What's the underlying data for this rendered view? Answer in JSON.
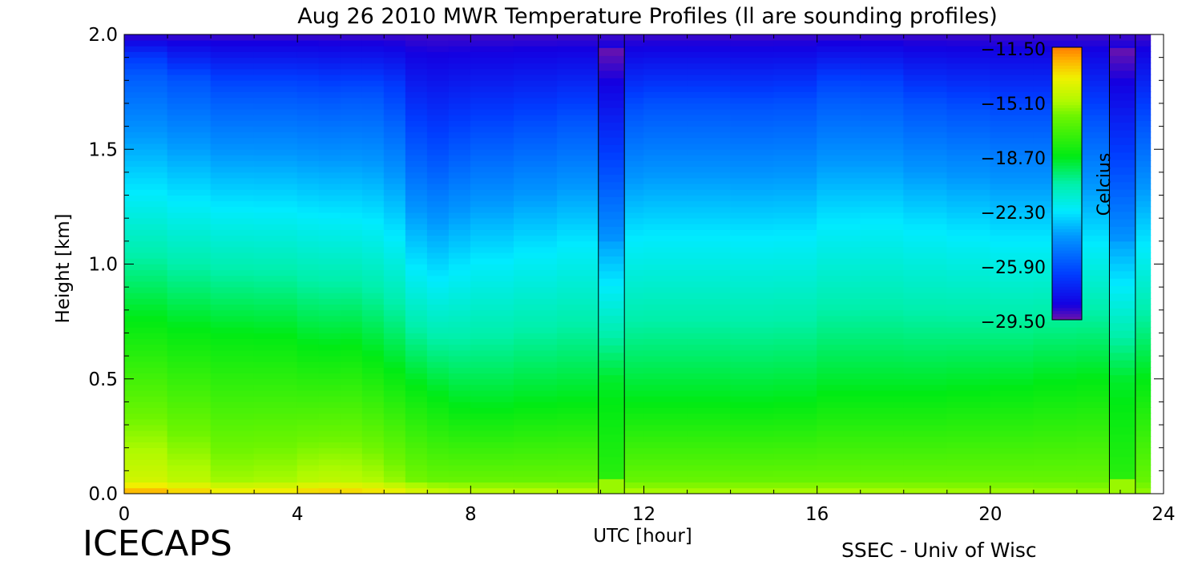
{
  "chart_data": {
    "type": "heatmap",
    "title": "Aug 26 2010 MWR Temperature Profiles (ll are sounding profiles)",
    "xlabel": "UTC [hour]",
    "ylabel": "Height [km]",
    "xlim": [
      0,
      24
    ],
    "ylim": [
      0,
      2
    ],
    "x_ticks": [
      "0",
      "4",
      "8",
      "12",
      "16",
      "20",
      "24"
    ],
    "y_ticks": [
      "0.0",
      "0.5",
      "1.0",
      "1.5",
      "2.0"
    ],
    "colorbar": {
      "label": "Celcius",
      "range": [
        -29.5,
        -11.5
      ],
      "ticks": [
        "-11.50",
        "-15.10",
        "-18.70",
        "-22.30",
        "-25.90",
        "-29.50"
      ]
    },
    "sounding_profiles": [
      {
        "x_start": 10.95,
        "x_end": 11.55
      },
      {
        "x_start": 22.75,
        "x_end": 23.35
      }
    ],
    "layers": {
      "time_hours": [
        0,
        1,
        2,
        3,
        4,
        4.5,
        5,
        5.5,
        6,
        6.5,
        7,
        7.5,
        8,
        9,
        10,
        11,
        12,
        13,
        14,
        15,
        16,
        17,
        18,
        19,
        20,
        21,
        22,
        23,
        24
      ],
      "isotherms_km": [
        {
          "temperature": -18.7,
          "height_km": [
            0.8,
            0.72,
            0.72,
            0.68,
            0.7,
            0.6,
            0.68,
            0.62,
            0.58,
            0.5,
            0.45,
            0.4,
            0.36,
            0.38,
            0.4,
            0.4,
            0.4,
            0.4,
            0.4,
            0.38,
            0.42,
            0.45,
            0.42,
            0.45,
            0.45,
            0.47,
            0.5,
            0.5,
            0.5
          ]
        },
        {
          "temperature": -22.3,
          "height_km": [
            1.35,
            1.28,
            1.27,
            1.22,
            1.26,
            1.18,
            1.24,
            1.17,
            1.2,
            1.05,
            0.92,
            0.95,
            1.0,
            1.03,
            1.07,
            1.1,
            1.12,
            1.12,
            1.12,
            1.11,
            1.13,
            1.22,
            1.15,
            1.15,
            1.1,
            1.1,
            1.1,
            1.08,
            1.08
          ]
        },
        {
          "temperature": -25.9,
          "height_km": [
            1.9,
            1.82,
            1.8,
            1.72,
            1.8,
            1.7,
            1.78,
            1.72,
            1.78,
            1.6,
            1.45,
            1.5,
            1.55,
            1.58,
            1.62,
            1.65,
            1.7,
            1.7,
            1.7,
            1.68,
            1.72,
            1.8,
            1.7,
            1.7,
            1.65,
            1.66,
            1.65,
            1.62,
            1.62
          ]
        }
      ],
      "surface_temperature": [
        -12.0,
        -12.2,
        -13.0,
        -13.2,
        -12.8,
        -12.6,
        -12.6,
        -12.7,
        -13.0,
        -13.5,
        -14.0,
        -14.3,
        -14.5,
        -14.6,
        -14.7,
        -14.8,
        -15.0,
        -15.0,
        -15.0,
        -15.0,
        -14.9,
        -14.9,
        -15.0,
        -15.1,
        -15.1,
        -15.2,
        -15.3,
        -15.4,
        -15.4
      ]
    }
  },
  "footer": {
    "left": "ICECAPS",
    "right": "SSEC - Univ of Wisc"
  }
}
